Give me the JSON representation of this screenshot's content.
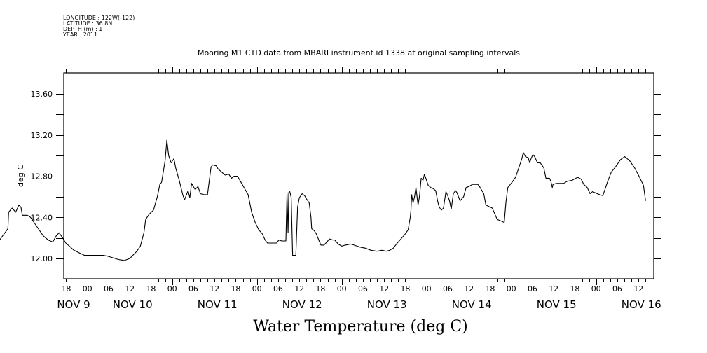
{
  "header": {
    "longitude": "LONGITUDE : 122W(-122)",
    "latitude": "LATITUDE : 36.8N",
    "depth": "DEPTH (m) : 1",
    "year": "YEAR : 2011"
  },
  "chart_data": {
    "type": "line",
    "title": "Mooring M1 CTD data from MBARI instrument id 1338 at original sampling intervals",
    "xlabel": "Water Temperature (deg C)",
    "ylabel": "deg C",
    "ylim": [
      11.8,
      13.81
    ],
    "yticks": [
      12.0,
      12.4,
      12.8,
      13.2,
      13.6
    ],
    "ytick_labels": [
      "12.00",
      "12.40",
      "12.80",
      "13.20",
      "13.60"
    ],
    "yminor_step": 0.2,
    "x_units": "hours since 2011-11-10 00:00",
    "xlim": [
      -30.7,
      158.6
    ],
    "xticks_hours": [
      -6,
      0,
      6,
      12,
      18,
      24,
      30,
      36,
      42,
      48,
      54,
      60,
      66,
      72,
      78,
      84,
      90,
      96,
      102,
      108,
      114,
      120,
      126,
      132,
      138,
      144,
      150,
      156
    ],
    "xtick_labels": [
      "18",
      "00",
      "06",
      "12",
      "18",
      "00",
      "06",
      "12",
      "18",
      "00",
      "06",
      "12",
      "18",
      "00",
      "06",
      "12",
      "18",
      "00",
      "06",
      "12",
      "18",
      "00",
      "06",
      "12",
      "18",
      "00",
      "06",
      "12"
    ],
    "date_labels": [
      {
        "label": "NOV  9",
        "hour": -24
      },
      {
        "label": "NOV 10",
        "hour": 0
      },
      {
        "label": "NOV 11",
        "hour": 24
      },
      {
        "label": "NOV 12",
        "hour": 48
      },
      {
        "label": "NOV 13",
        "hour": 72
      },
      {
        "label": "NOV 14",
        "hour": 96
      },
      {
        "label": "NOV 15",
        "hour": 120
      },
      {
        "label": "NOV 16",
        "hour": 144
      }
    ],
    "grid": false,
    "series": [
      {
        "name": "Water Temperature",
        "points": [
          [
            -30.5,
            11.99
          ],
          [
            -28.3,
            12.05
          ],
          [
            -26.3,
            12.11
          ],
          [
            -24.4,
            12.2
          ],
          [
            -22.5,
            12.29
          ],
          [
            -22.3,
            12.45
          ],
          [
            -21.3,
            12.49
          ],
          [
            -20.3,
            12.45
          ],
          [
            -19.4,
            12.52
          ],
          [
            -18.8,
            12.5
          ],
          [
            -18.4,
            12.42
          ],
          [
            -17.0,
            12.42
          ],
          [
            -16.1,
            12.4
          ],
          [
            -14.5,
            12.32
          ],
          [
            -12.5,
            12.22
          ],
          [
            -11.1,
            12.18
          ],
          [
            -9.8,
            12.16
          ],
          [
            -8.8,
            12.22
          ],
          [
            -8.0,
            12.25
          ],
          [
            -7.0,
            12.2
          ],
          [
            -6.1,
            12.15
          ],
          [
            -5.1,
            12.12
          ],
          [
            -3.8,
            12.08
          ],
          [
            -2.0,
            12.05
          ],
          [
            -0.8,
            12.03
          ],
          [
            1.5,
            12.03
          ],
          [
            4.5,
            12.03
          ],
          [
            6.0,
            12.02
          ],
          [
            8.8,
            11.99
          ],
          [
            10.5,
            11.98
          ],
          [
            12.0,
            12.0
          ],
          [
            14.0,
            12.07
          ],
          [
            15.0,
            12.12
          ],
          [
            16.0,
            12.25
          ],
          [
            16.5,
            12.38
          ],
          [
            17.5,
            12.43
          ],
          [
            18.7,
            12.47
          ],
          [
            19.8,
            12.6
          ],
          [
            20.5,
            12.72
          ],
          [
            21.0,
            12.74
          ],
          [
            22.0,
            12.95
          ],
          [
            22.5,
            13.15
          ],
          [
            23.0,
            13.0
          ],
          [
            23.7,
            12.93
          ],
          [
            24.5,
            12.97
          ],
          [
            25.0,
            12.88
          ],
          [
            26.0,
            12.76
          ],
          [
            27.0,
            12.62
          ],
          [
            27.5,
            12.57
          ],
          [
            28.5,
            12.66
          ],
          [
            29.0,
            12.59
          ],
          [
            29.5,
            12.73
          ],
          [
            30.5,
            12.67
          ],
          [
            31.3,
            12.7
          ],
          [
            32.0,
            12.63
          ],
          [
            33.0,
            12.62
          ],
          [
            34.0,
            12.62
          ],
          [
            35.0,
            12.89
          ],
          [
            35.5,
            12.91
          ],
          [
            36.5,
            12.9
          ],
          [
            37.0,
            12.87
          ],
          [
            38.0,
            12.84
          ],
          [
            39.0,
            12.81
          ],
          [
            40.0,
            12.82
          ],
          [
            40.8,
            12.78
          ],
          [
            41.5,
            12.8
          ],
          [
            42.5,
            12.8
          ],
          [
            43.0,
            12.77
          ],
          [
            43.5,
            12.74
          ],
          [
            44.5,
            12.68
          ],
          [
            45.5,
            12.62
          ],
          [
            46.5,
            12.45
          ],
          [
            47.5,
            12.35
          ],
          [
            48.5,
            12.28
          ],
          [
            49.5,
            12.24
          ],
          [
            50.3,
            12.18
          ],
          [
            51.0,
            12.15
          ],
          [
            53.0,
            12.15
          ],
          [
            53.6,
            12.15
          ],
          [
            54.2,
            12.18
          ],
          [
            55.0,
            12.17
          ],
          [
            56.2,
            12.17
          ],
          [
            56.5,
            12.64
          ],
          [
            56.8,
            12.25
          ],
          [
            57.0,
            12.64
          ],
          [
            57.3,
            12.65
          ],
          [
            57.7,
            12.59
          ],
          [
            58.1,
            12.03
          ],
          [
            59.0,
            12.03
          ],
          [
            59.5,
            12.5
          ],
          [
            60.0,
            12.59
          ],
          [
            60.8,
            12.63
          ],
          [
            61.5,
            12.61
          ],
          [
            62.0,
            12.58
          ],
          [
            62.8,
            12.54
          ],
          [
            63.3,
            12.4
          ],
          [
            63.5,
            12.29
          ],
          [
            64.2,
            12.27
          ],
          [
            64.8,
            12.24
          ],
          [
            65.5,
            12.18
          ],
          [
            66.1,
            12.13
          ],
          [
            67.0,
            12.13
          ],
          [
            67.8,
            12.16
          ],
          [
            68.5,
            12.19
          ],
          [
            69.5,
            12.18
          ],
          [
            70.0,
            12.18
          ],
          [
            71.0,
            12.14
          ],
          [
            72.0,
            12.12
          ],
          [
            73.0,
            12.13
          ],
          [
            74.5,
            12.14
          ],
          [
            75.5,
            12.13
          ],
          [
            77.2,
            12.11
          ],
          [
            78.7,
            12.1
          ],
          [
            80.3,
            12.08
          ],
          [
            82.0,
            12.07
          ],
          [
            83.4,
            12.08
          ],
          [
            84.6,
            12.07
          ],
          [
            85.6,
            12.08
          ],
          [
            86.6,
            12.1
          ],
          [
            87.5,
            12.14
          ],
          [
            88.5,
            12.18
          ],
          [
            90.0,
            12.24
          ],
          [
            90.8,
            12.28
          ],
          [
            91.4,
            12.4
          ],
          [
            91.6,
            12.47
          ],
          [
            91.8,
            12.62
          ],
          [
            92.2,
            12.54
          ],
          [
            92.6,
            12.6
          ],
          [
            93.0,
            12.69
          ],
          [
            93.6,
            12.52
          ],
          [
            94.0,
            12.6
          ],
          [
            94.5,
            12.78
          ],
          [
            95.0,
            12.76
          ],
          [
            95.4,
            12.82
          ],
          [
            96.0,
            12.76
          ],
          [
            96.5,
            12.71
          ],
          [
            97.2,
            12.69
          ],
          [
            97.8,
            12.68
          ],
          [
            98.6,
            12.66
          ],
          [
            99.2,
            12.55
          ],
          [
            99.6,
            12.5
          ],
          [
            100.2,
            12.47
          ],
          [
            100.8,
            12.49
          ],
          [
            101.5,
            12.65
          ],
          [
            102.0,
            12.61
          ],
          [
            102.5,
            12.56
          ],
          [
            103.0,
            12.48
          ],
          [
            103.6,
            12.63
          ],
          [
            104.2,
            12.66
          ],
          [
            104.6,
            12.64
          ],
          [
            105.5,
            12.56
          ],
          [
            106.5,
            12.6
          ],
          [
            107.2,
            12.69
          ],
          [
            108.0,
            12.7
          ],
          [
            109.0,
            12.72
          ],
          [
            110.5,
            12.72
          ],
          [
            111.0,
            12.7
          ],
          [
            112.2,
            12.63
          ],
          [
            112.8,
            12.52
          ],
          [
            114.0,
            12.5
          ],
          [
            114.6,
            12.49
          ],
          [
            115.5,
            12.42
          ],
          [
            116.0,
            12.38
          ],
          [
            117.4,
            12.36
          ],
          [
            118.0,
            12.35
          ],
          [
            118.5,
            12.55
          ],
          [
            119.0,
            12.69
          ],
          [
            120.2,
            12.74
          ],
          [
            121.2,
            12.79
          ],
          [
            122.2,
            12.89
          ],
          [
            123.0,
            12.97
          ],
          [
            123.4,
            13.03
          ],
          [
            124.0,
            12.99
          ],
          [
            124.8,
            12.98
          ],
          [
            125.2,
            12.93
          ],
          [
            125.6,
            12.97
          ],
          [
            126.1,
            13.01
          ],
          [
            126.6,
            12.99
          ],
          [
            127.4,
            12.93
          ],
          [
            128.2,
            12.93
          ],
          [
            129.2,
            12.88
          ],
          [
            129.8,
            12.78
          ],
          [
            130.8,
            12.78
          ],
          [
            131.2,
            12.75
          ],
          [
            131.6,
            12.69
          ],
          [
            131.8,
            12.72
          ],
          [
            132.8,
            12.73
          ],
          [
            134.8,
            12.73
          ],
          [
            135.8,
            12.75
          ],
          [
            137.2,
            12.76
          ],
          [
            138.8,
            12.79
          ],
          [
            139.8,
            12.77
          ],
          [
            140.5,
            12.72
          ],
          [
            141.5,
            12.69
          ],
          [
            142.3,
            12.63
          ],
          [
            143.0,
            12.65
          ],
          [
            144.3,
            12.63
          ],
          [
            145.9,
            12.61
          ],
          [
            147.3,
            12.75
          ],
          [
            148.3,
            12.84
          ],
          [
            149.5,
            12.89
          ],
          [
            150.9,
            12.96
          ],
          [
            152.1,
            12.99
          ],
          [
            153.5,
            12.95
          ],
          [
            154.9,
            12.88
          ],
          [
            156.3,
            12.79
          ],
          [
            157.4,
            12.71
          ],
          [
            158.0,
            12.56
          ]
        ]
      }
    ]
  }
}
